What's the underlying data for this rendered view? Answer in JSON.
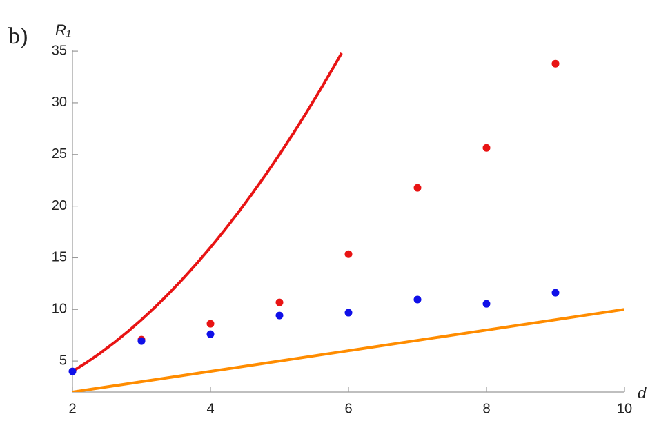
{
  "chart_data": {
    "type": "scatter",
    "annotation": "b)",
    "ylabel": "R₁",
    "xlabel": "d",
    "xlim": [
      2,
      10
    ],
    "ylim": [
      2,
      35
    ],
    "xticks": [
      2,
      4,
      6,
      8,
      10
    ],
    "yticks": [
      5,
      10,
      15,
      20,
      25,
      30,
      35
    ],
    "series": [
      {
        "style": "line",
        "color": "#e81414",
        "x": [
          2,
          2.2,
          2.4,
          2.6,
          2.8,
          3,
          3.2,
          3.4,
          3.6,
          3.8,
          4,
          4.2,
          4.4,
          4.6,
          4.8,
          5,
          5.2,
          5.4,
          5.6,
          5.8,
          5.9
        ],
        "values": [
          4,
          4.84,
          5.76,
          6.76,
          7.84,
          9,
          10.24,
          11.56,
          12.96,
          14.44,
          16,
          17.64,
          19.36,
          21.16,
          23.04,
          25,
          27.04,
          29.16,
          31.36,
          33.64,
          34.81
        ]
      },
      {
        "style": "line",
        "color": "#ff8c00",
        "x": [
          2,
          10
        ],
        "values": [
          2,
          10
        ]
      },
      {
        "style": "points",
        "color": "#e81414",
        "x": [
          3,
          4,
          5,
          6,
          7,
          8,
          9
        ],
        "values": [
          7.07,
          8.61,
          10.68,
          15.35,
          21.77,
          25.64,
          33.79
        ]
      },
      {
        "style": "points",
        "color": "#1010e8",
        "x": [
          2,
          3,
          4,
          5,
          6,
          7,
          8,
          9
        ],
        "values": [
          4.0,
          6.94,
          7.6,
          9.41,
          9.68,
          10.95,
          10.54,
          11.61
        ]
      }
    ]
  }
}
